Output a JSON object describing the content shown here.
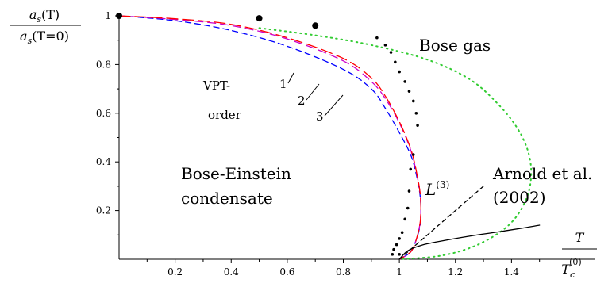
{
  "chart_data": {
    "type": "line",
    "xlim": [
      0,
      1.6
    ],
    "ylim": [
      0,
      1.0
    ],
    "x_ticks": [
      0.2,
      0.4,
      0.6,
      0.8,
      1,
      1.2,
      1.4
    ],
    "y_ticks": [
      0.2,
      0.4,
      0.6,
      0.8,
      1
    ],
    "x_tick_labels": [
      "0.2",
      "0.4",
      "0.6",
      "0.8",
      "1",
      "1.2",
      "1.4"
    ],
    "y_tick_labels": [
      "0.2",
      "0.4",
      "0.6",
      "0.8",
      "1"
    ],
    "xlabel": {
      "top": "T",
      "bottom": "T",
      "sub": "c",
      "sup": "(0)"
    },
    "ylabel": {
      "top": "a",
      "top_sub": "s",
      "top_arg": "(T)",
      "bottom": "a",
      "bottom_sub": "s",
      "bottom_arg": "(T=0)"
    },
    "annotations": {
      "bose_gas": "Bose gas",
      "bec_line1": "Bose-Einstein",
      "bec_line2": "condensate",
      "vpt_line1": "VPT-",
      "vpt_line2": "order",
      "order1": "1",
      "order2": "2",
      "order3": "3",
      "arnold_line1": "Arnold et al.",
      "arnold_line2": "(2002)",
      "L3": "L",
      "L3_sup": "(3)"
    },
    "series": [
      {
        "color": "#0000ff",
        "dash": "7,5",
        "points": [
          [
            0,
            1
          ],
          [
            0.2,
            0.98
          ],
          [
            0.4,
            0.94
          ],
          [
            0.6,
            0.875
          ],
          [
            0.8,
            0.78
          ],
          [
            0.9,
            0.7
          ],
          [
            0.95,
            0.62
          ],
          [
            1.0,
            0.52
          ],
          [
            1.04,
            0.43
          ],
          [
            1.06,
            0.35
          ],
          [
            1.075,
            0.25
          ],
          [
            1.075,
            0.15
          ],
          [
            1.06,
            0.08
          ],
          [
            1.04,
            0.03
          ],
          [
            1.0,
            0
          ]
        ]
      },
      {
        "color": "#cc00cc",
        "dash": "10,6",
        "points": [
          [
            0,
            1
          ],
          [
            0.2,
            0.985
          ],
          [
            0.4,
            0.96
          ],
          [
            0.6,
            0.905
          ],
          [
            0.8,
            0.815
          ],
          [
            0.9,
            0.73
          ],
          [
            0.95,
            0.66
          ],
          [
            1.0,
            0.56
          ],
          [
            1.04,
            0.45
          ],
          [
            1.06,
            0.36
          ],
          [
            1.075,
            0.26
          ],
          [
            1.075,
            0.16
          ],
          [
            1.06,
            0.08
          ],
          [
            1.04,
            0.03
          ],
          [
            1.0,
            0
          ]
        ]
      },
      {
        "color": "#ff0000",
        "dash": "14,6",
        "points": [
          [
            0,
            1
          ],
          [
            0.2,
            0.988
          ],
          [
            0.4,
            0.965
          ],
          [
            0.6,
            0.91
          ],
          [
            0.8,
            0.825
          ],
          [
            0.9,
            0.745
          ],
          [
            0.95,
            0.67
          ],
          [
            1.0,
            0.565
          ],
          [
            1.04,
            0.455
          ],
          [
            1.06,
            0.365
          ],
          [
            1.075,
            0.26
          ],
          [
            1.075,
            0.16
          ],
          [
            1.06,
            0.08
          ],
          [
            1.04,
            0.03
          ],
          [
            1.0,
            0
          ]
        ]
      },
      {
        "color": "#33cc33",
        "dash": "1.5,5",
        "points": [
          [
            0.5,
            0.95
          ],
          [
            0.7,
            0.92
          ],
          [
            0.9,
            0.88
          ],
          [
            1.1,
            0.82
          ],
          [
            1.25,
            0.74
          ],
          [
            1.35,
            0.64
          ],
          [
            1.42,
            0.54
          ],
          [
            1.46,
            0.44
          ],
          [
            1.47,
            0.34
          ],
          [
            1.45,
            0.24
          ],
          [
            1.39,
            0.14
          ],
          [
            1.28,
            0.06
          ],
          [
            1.15,
            0.015
          ],
          [
            1.0,
            0
          ]
        ]
      },
      {
        "color": "#000000",
        "dash": "5,4",
        "points": [
          [
            1.0,
            0
          ],
          [
            1.3,
            0.3
          ]
        ]
      },
      {
        "color": "#000000",
        "dash": "",
        "points": [
          [
            1.0,
            0
          ],
          [
            1.03,
            0.035
          ],
          [
            1.08,
            0.058
          ],
          [
            1.15,
            0.075
          ],
          [
            1.25,
            0.095
          ],
          [
            1.35,
            0.112
          ],
          [
            1.45,
            0.13
          ],
          [
            1.5,
            0.14
          ]
        ]
      }
    ],
    "dots": {
      "large": [
        [
          0,
          1
        ],
        [
          0.5,
          0.99
        ],
        [
          0.7,
          0.96
        ]
      ],
      "small": [
        [
          0.92,
          0.91
        ],
        [
          0.95,
          0.88
        ],
        [
          0.97,
          0.85
        ],
        [
          0.985,
          0.81
        ],
        [
          1.0,
          0.77
        ],
        [
          1.02,
          0.73
        ],
        [
          1.035,
          0.69
        ],
        [
          1.05,
          0.65
        ],
        [
          1.06,
          0.6
        ],
        [
          1.065,
          0.55
        ],
        [
          1.05,
          0.43
        ],
        [
          1.04,
          0.37
        ],
        [
          1.035,
          0.28
        ],
        [
          1.03,
          0.21
        ],
        [
          1.02,
          0.165
        ],
        [
          1.01,
          0.11
        ],
        [
          1.0,
          0.085
        ],
        [
          0.99,
          0.06
        ],
        [
          0.98,
          0.04
        ],
        [
          0.975,
          0.02
        ],
        [
          1.0,
          0.02
        ]
      ]
    }
  }
}
